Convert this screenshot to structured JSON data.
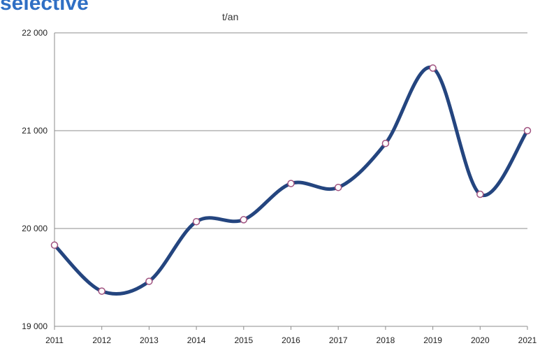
{
  "title": "selective",
  "chart_data": {
    "type": "line",
    "title": "selective",
    "ylabel": "t/an",
    "xlabel": "",
    "x": [
      "2011",
      "2012",
      "2013",
      "2014",
      "2015",
      "2016",
      "2017",
      "2018",
      "2019",
      "2020",
      "2021"
    ],
    "series": [
      {
        "values": [
          19830,
          19360,
          19460,
          20070,
          20090,
          20460,
          20420,
          20870,
          21640,
          20350,
          21000
        ]
      }
    ],
    "ylim": [
      19000,
      22000
    ],
    "yticks": [
      19000,
      20000,
      21000,
      22000
    ],
    "ytick_labels": [
      "19 000",
      "20 000",
      "21 000",
      "22 000"
    ],
    "grid": true,
    "smooth": true,
    "colors": {
      "line": "#24457f",
      "marker_fill": "#ffffff",
      "marker_edge": "#a0527f",
      "grid": "#8c8c8c"
    }
  }
}
